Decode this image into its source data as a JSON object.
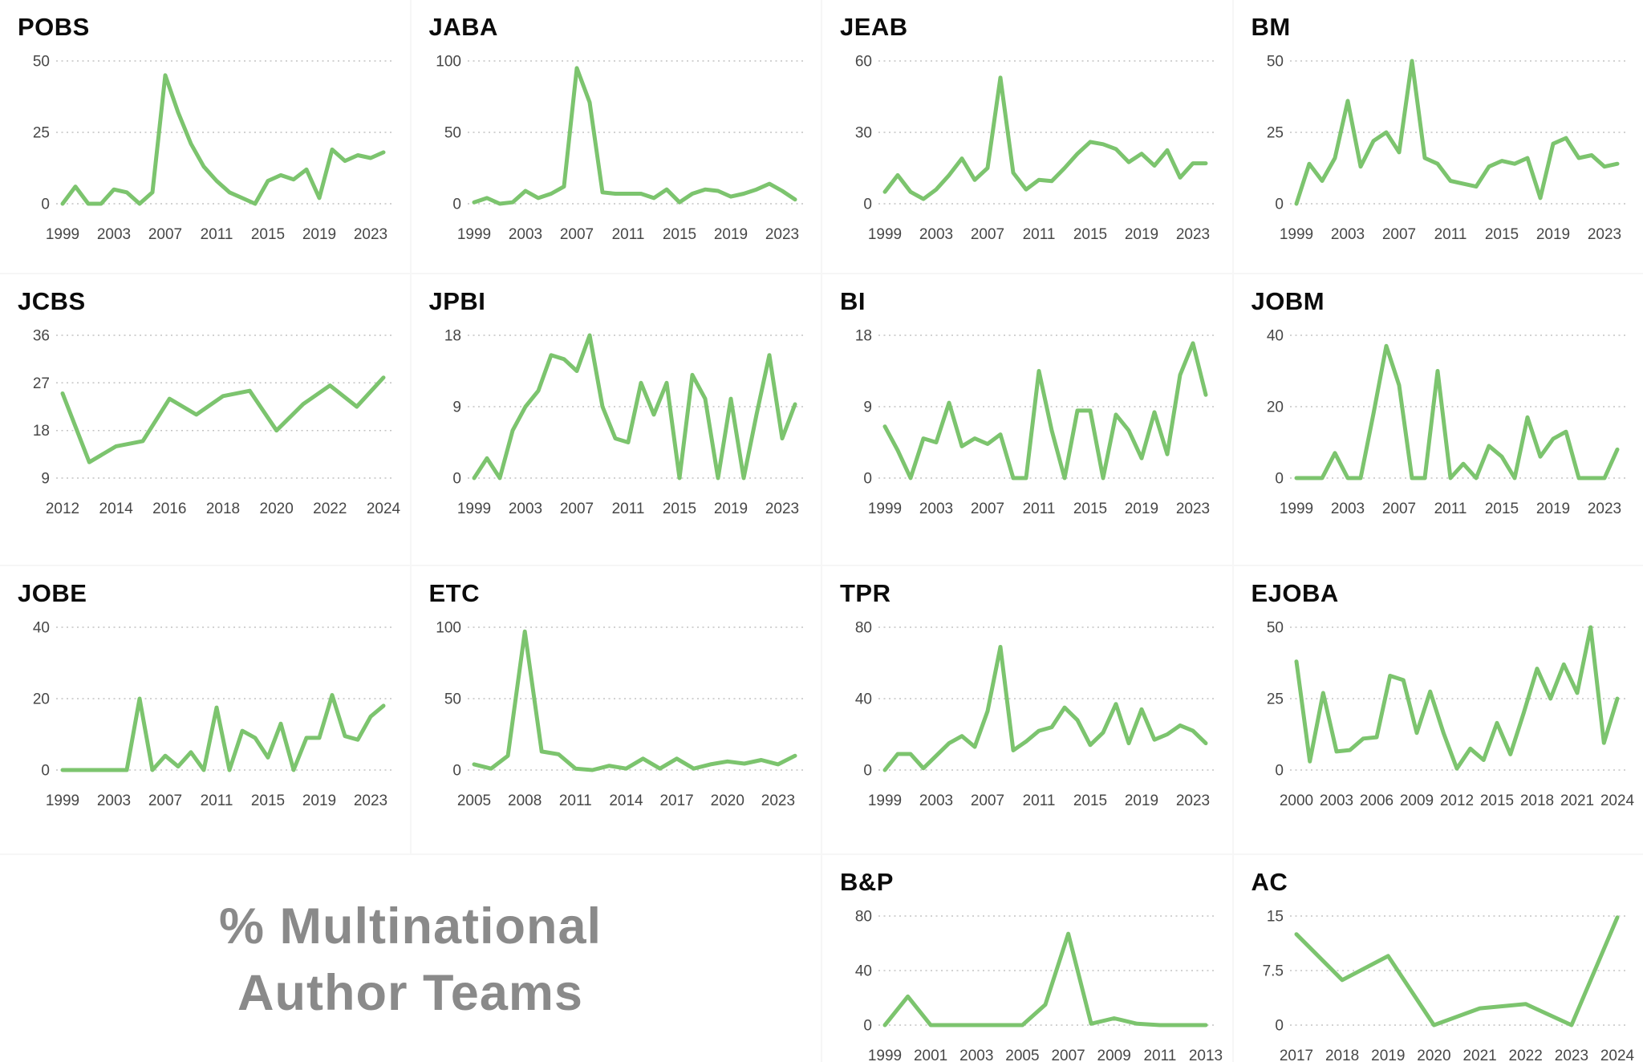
{
  "page": {
    "caption": {
      "line1": "% Multinational",
      "line2": "Author Teams"
    }
  },
  "style": {
    "line_color": "#7cc46e",
    "grid_color": "#c3c3c3",
    "tick_color": "#474747",
    "title_color": "#0b0b0b",
    "caption_color": "#8a8a8a",
    "card_background": "#ffffff"
  },
  "chart_data": [
    {
      "id": "pobs",
      "type": "line",
      "title": "POBS",
      "x_start": 1999,
      "x_ticks": [
        1999,
        2003,
        2007,
        2011,
        2015,
        2019,
        2023
      ],
      "y_ticks": [
        0,
        25,
        50
      ],
      "ylim": [
        0,
        50
      ],
      "grid": "dotted-horizontal",
      "values": [
        0,
        6,
        0,
        0,
        5,
        4,
        0,
        4,
        45,
        32,
        21,
        13,
        8,
        4,
        2,
        0,
        8,
        10,
        8.5,
        12,
        2,
        19,
        15,
        17,
        16,
        18
      ]
    },
    {
      "id": "jaba",
      "type": "line",
      "title": "JABA",
      "x_start": 1999,
      "x_ticks": [
        1999,
        2003,
        2007,
        2011,
        2015,
        2019,
        2023
      ],
      "y_ticks": [
        0,
        50,
        100
      ],
      "ylim": [
        0,
        100
      ],
      "grid": "dotted-horizontal",
      "values": [
        1,
        4,
        0,
        1,
        9,
        4,
        7,
        12,
        95,
        71,
        8,
        7,
        7,
        7,
        4,
        10,
        1,
        7,
        10,
        9,
        5,
        7,
        10,
        14,
        9,
        3
      ]
    },
    {
      "id": "jeab",
      "type": "line",
      "title": "JEAB",
      "x_start": 1999,
      "x_ticks": [
        1999,
        2003,
        2007,
        2011,
        2015,
        2019,
        2023
      ],
      "y_ticks": [
        0,
        30,
        60
      ],
      "ylim": [
        0,
        60
      ],
      "grid": "dotted-horizontal",
      "values": [
        5,
        12,
        5,
        2,
        6,
        12,
        19,
        10,
        15,
        53,
        13,
        6,
        10,
        9.5,
        15,
        21,
        26,
        25,
        23,
        17.5,
        21,
        16,
        22.5,
        11,
        17,
        17
      ]
    },
    {
      "id": "bm",
      "type": "line",
      "title": "BM",
      "x_start": 1999,
      "x_ticks": [
        1999,
        2003,
        2007,
        2011,
        2015,
        2019,
        2023
      ],
      "y_ticks": [
        0,
        25,
        50
      ],
      "ylim": [
        0,
        50
      ],
      "grid": "dotted-horizontal",
      "values": [
        0,
        14,
        8,
        16,
        36,
        13,
        22,
        25,
        18,
        50,
        16,
        14,
        8,
        7,
        6,
        13,
        15,
        14,
        16,
        2,
        21,
        23,
        16,
        17,
        13,
        14
      ]
    },
    {
      "id": "jcbs",
      "type": "line",
      "title": "JCBS",
      "x_start": 2012,
      "x_ticks": [
        2012,
        2014,
        2016,
        2018,
        2020,
        2022,
        2024
      ],
      "y_ticks": [
        9,
        18,
        27,
        36
      ],
      "ylim": [
        9,
        36
      ],
      "grid": "dotted-horizontal",
      "values": [
        25,
        12,
        15,
        16,
        24,
        21,
        24.5,
        25.5,
        18,
        23,
        26.5,
        22.5,
        28
      ]
    },
    {
      "id": "jpbi",
      "type": "line",
      "title": "JPBI",
      "x_start": 1999,
      "x_ticks": [
        1999,
        2003,
        2007,
        2011,
        2015,
        2019,
        2023
      ],
      "y_ticks": [
        0,
        9,
        18
      ],
      "ylim": [
        0,
        18
      ],
      "grid": "dotted-horizontal",
      "values": [
        0,
        2.5,
        0,
        6,
        9,
        11,
        15.5,
        15,
        13.5,
        18,
        9,
        5,
        4.5,
        12,
        8,
        12,
        0,
        13,
        10,
        0,
        10,
        0,
        8,
        15.5,
        5,
        9.3
      ]
    },
    {
      "id": "bi",
      "type": "line",
      "title": "BI",
      "x_start": 1999,
      "x_ticks": [
        1999,
        2003,
        2007,
        2011,
        2015,
        2019,
        2023
      ],
      "y_ticks": [
        0,
        9,
        18
      ],
      "ylim": [
        0,
        18
      ],
      "grid": "dotted-horizontal",
      "values": [
        6.5,
        3.5,
        0,
        5,
        4.5,
        9.5,
        4,
        5,
        4.3,
        5.5,
        0,
        0,
        13.5,
        6,
        0,
        8.5,
        8.5,
        0,
        8,
        6,
        2.5,
        8.3,
        3,
        13,
        17,
        10.5
      ]
    },
    {
      "id": "jobm",
      "type": "line",
      "title": "JOBM",
      "x_start": 1999,
      "x_ticks": [
        1999,
        2003,
        2007,
        2011,
        2015,
        2019,
        2023
      ],
      "y_ticks": [
        0,
        20,
        40
      ],
      "ylim": [
        0,
        40
      ],
      "grid": "dotted-horizontal",
      "values": [
        0,
        0,
        0,
        7,
        0,
        0,
        18,
        37,
        26,
        0,
        0,
        30,
        0,
        4,
        0,
        9,
        6,
        0,
        17,
        6,
        11,
        13,
        0,
        0,
        0,
        8
      ]
    },
    {
      "id": "jobe",
      "type": "line",
      "title": "JOBE",
      "x_start": 1999,
      "x_ticks": [
        1999,
        2003,
        2007,
        2011,
        2015,
        2019,
        2023
      ],
      "y_ticks": [
        0,
        20,
        40
      ],
      "ylim": [
        0,
        40
      ],
      "grid": "dotted-horizontal",
      "values": [
        0,
        0,
        0,
        0,
        0,
        0,
        20,
        0,
        4,
        1,
        5,
        0,
        17.5,
        0,
        11,
        9,
        3.5,
        13,
        0,
        9,
        9,
        21,
        9.5,
        8.5,
        15,
        18
      ]
    },
    {
      "id": "etc",
      "type": "line",
      "title": "ETC",
      "x_start": 2005,
      "x_ticks": [
        2005,
        2008,
        2011,
        2014,
        2017,
        2020,
        2023
      ],
      "y_ticks": [
        0,
        50,
        100
      ],
      "ylim": [
        0,
        100
      ],
      "grid": "dotted-horizontal",
      "values": [
        4,
        1,
        10,
        97,
        13,
        11,
        1,
        0,
        3,
        1,
        8,
        1,
        8,
        1,
        4,
        6,
        4.5,
        7,
        4,
        10
      ]
    },
    {
      "id": "tpr",
      "type": "line",
      "title": "TPR",
      "x_start": 1999,
      "x_ticks": [
        1999,
        2003,
        2007,
        2011,
        2015,
        2019,
        2023
      ],
      "y_ticks": [
        0,
        40,
        80
      ],
      "ylim": [
        0,
        80
      ],
      "grid": "dotted-horizontal",
      "values": [
        0,
        9,
        9,
        1,
        8,
        15,
        19,
        13,
        33,
        69,
        11,
        16,
        22,
        24,
        35,
        28,
        14,
        21,
        37,
        15,
        34,
        17,
        20,
        25,
        22,
        15
      ]
    },
    {
      "id": "ejoba",
      "type": "line",
      "title": "EJOBA",
      "x_start": 2000,
      "x_ticks": [
        2000,
        2003,
        2006,
        2009,
        2012,
        2015,
        2018,
        2021,
        2024
      ],
      "y_ticks": [
        0,
        25,
        50
      ],
      "ylim": [
        0,
        50
      ],
      "grid": "dotted-horizontal",
      "values": [
        38,
        3,
        27,
        6.5,
        7,
        11,
        11.5,
        33,
        31.5,
        13,
        27.5,
        13,
        0.5,
        7.5,
        3.5,
        16.5,
        5.5,
        20,
        35.5,
        25,
        37,
        27,
        50,
        9.5,
        25
      ]
    },
    {
      "id": "bp",
      "type": "line",
      "title": "B&P",
      "x_start": 1999,
      "compact": true,
      "x_ticks": [
        1999,
        2001,
        2003,
        2005,
        2007,
        2009,
        2011,
        2013
      ],
      "y_ticks": [
        0,
        40,
        80
      ],
      "ylim": [
        0,
        80
      ],
      "grid": "dotted-horizontal",
      "values": [
        0,
        21,
        0,
        0,
        0,
        0,
        0,
        15,
        67,
        1,
        5,
        1,
        0,
        0,
        0
      ]
    },
    {
      "id": "ac",
      "type": "line",
      "title": "AC",
      "x_start": 2017,
      "compact": true,
      "x_ticks": [
        2017,
        2018,
        2019,
        2020,
        2021,
        2022,
        2023,
        2024
      ],
      "y_ticks": [
        0,
        7.5,
        15
      ],
      "ylim": [
        0,
        15
      ],
      "grid": "dotted-horizontal",
      "values": [
        12.5,
        6.2,
        9.5,
        0,
        2.3,
        2.9,
        0,
        14.8
      ]
    }
  ]
}
